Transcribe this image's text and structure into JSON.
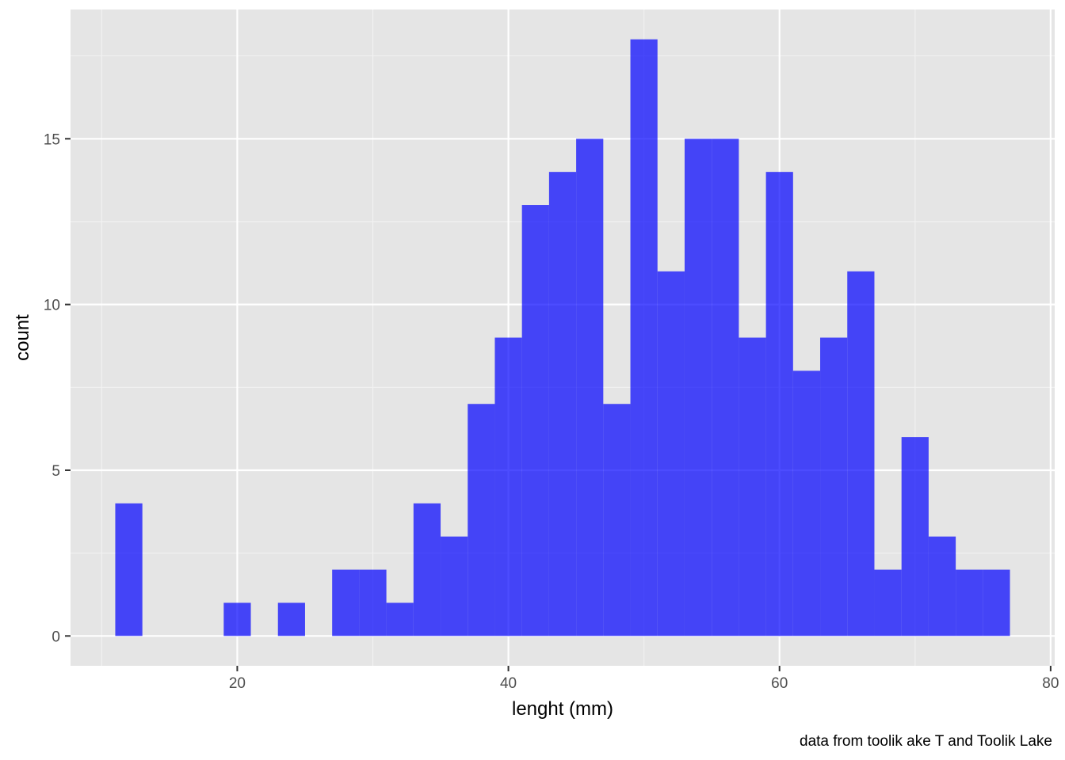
{
  "chart_data": {
    "type": "bar",
    "subtype": "histogram",
    "bin_width": 2,
    "bins": [
      {
        "x": 12,
        "count": 4
      },
      {
        "x": 14,
        "count": 0
      },
      {
        "x": 16,
        "count": 0
      },
      {
        "x": 18,
        "count": 0
      },
      {
        "x": 20,
        "count": 1
      },
      {
        "x": 22,
        "count": 0
      },
      {
        "x": 24,
        "count": 1
      },
      {
        "x": 26,
        "count": 0
      },
      {
        "x": 28,
        "count": 2
      },
      {
        "x": 30,
        "count": 2
      },
      {
        "x": 32,
        "count": 1
      },
      {
        "x": 34,
        "count": 4
      },
      {
        "x": 36,
        "count": 3
      },
      {
        "x": 38,
        "count": 7
      },
      {
        "x": 40,
        "count": 9
      },
      {
        "x": 42,
        "count": 13
      },
      {
        "x": 44,
        "count": 14
      },
      {
        "x": 46,
        "count": 15
      },
      {
        "x": 48,
        "count": 7
      },
      {
        "x": 50,
        "count": 18
      },
      {
        "x": 52,
        "count": 11
      },
      {
        "x": 54,
        "count": 15
      },
      {
        "x": 56,
        "count": 15
      },
      {
        "x": 58,
        "count": 9
      },
      {
        "x": 60,
        "count": 14
      },
      {
        "x": 62,
        "count": 8
      },
      {
        "x": 64,
        "count": 9
      },
      {
        "x": 66,
        "count": 11
      },
      {
        "x": 68,
        "count": 2
      },
      {
        "x": 70,
        "count": 6
      },
      {
        "x": 72,
        "count": 3
      },
      {
        "x": 74,
        "count": 2
      },
      {
        "x": 76,
        "count": 2
      }
    ],
    "xlabel": "lenght (mm)",
    "ylabel": "count",
    "caption": "data from toolik ake T and Toolik Lake",
    "x_ticks": [
      20,
      40,
      60,
      80
    ],
    "y_ticks": [
      0,
      5,
      10,
      15
    ],
    "xlim": [
      7.7,
      80.3
    ],
    "ylim": [
      -0.9,
      18.9
    ],
    "grid": true,
    "legend": "none",
    "colors": {
      "bar": "#0000ff",
      "bar_opacity": 0.7,
      "panel": "#e5e5e5",
      "grid_major": "#ffffff",
      "grid_minor": "#f2f2f2",
      "tick_text": "#4d4d4d"
    }
  }
}
